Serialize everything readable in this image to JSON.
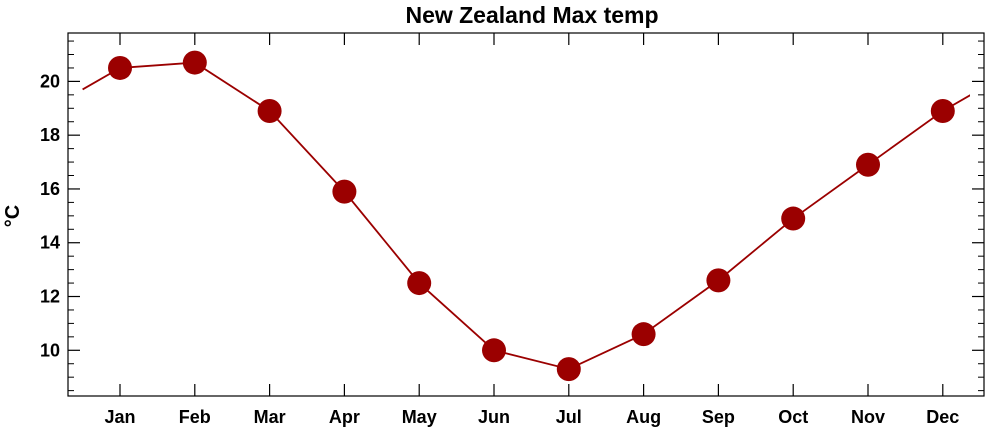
{
  "chart_data": {
    "type": "line",
    "title": "New Zealand Max temp",
    "xlabel": "",
    "ylabel": "°C",
    "categories": [
      "Jan",
      "Feb",
      "Mar",
      "Apr",
      "May",
      "Jun",
      "Jul",
      "Aug",
      "Sep",
      "Oct",
      "Nov",
      "Dec"
    ],
    "series": [
      {
        "values": [
          20.5,
          20.7,
          18.9,
          15.9,
          12.5,
          10.0,
          9.3,
          10.6,
          12.6,
          14.9,
          16.9,
          18.9
        ]
      }
    ],
    "yticks": [
      10,
      12,
      14,
      16,
      18,
      20
    ],
    "ylim": [
      8.3,
      21.8
    ],
    "wrap_endpoint_value": 19.7,
    "grid": false,
    "colors": {
      "series": "#9b0000",
      "axis": "#000000"
    }
  }
}
